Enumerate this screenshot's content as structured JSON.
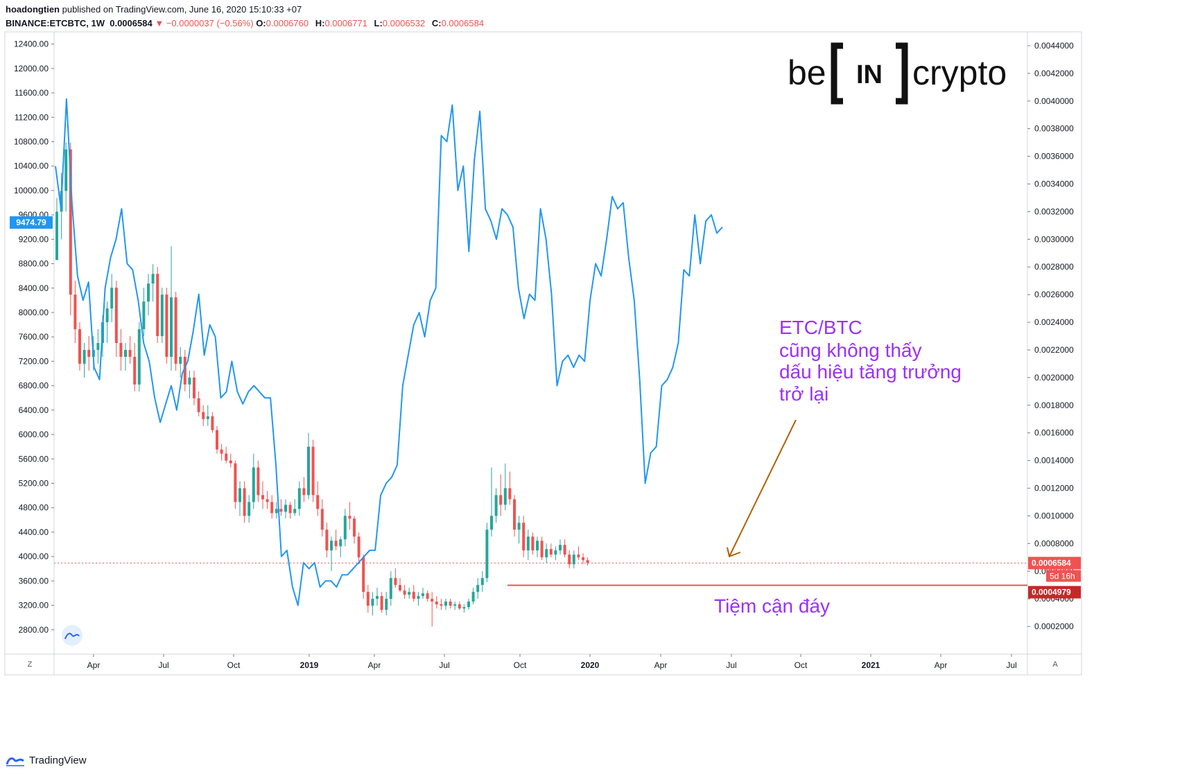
{
  "header": {
    "line1_user": "hoadongtien",
    "line1_rest": " published on TradingView.com, June 16, 2020 15:10:33 +07",
    "symbol": "BINANCE:ETCBTC, 1W",
    "last": "0.0006584",
    "change": "▼ −0.0000037 (−0.56%)",
    "o_label": "O:",
    "o": "0.0006760",
    "h_label": "H:",
    "h": "0.0006771",
    "l_label": "L:",
    "l": "0.0006532",
    "c_label": "C:",
    "c": "0.0006584"
  },
  "footer": {
    "brand": "TradingView"
  },
  "corner": {
    "left": "Z",
    "right": "A"
  },
  "colors": {
    "up": "#26a69a",
    "down": "#ef5350",
    "btc_line": "#2196f3",
    "annotation": "#9b30ff",
    "arrow": "#b35f00"
  },
  "icon": "tradingview-logo-icon",
  "chart_data": {
    "type": "line",
    "xaxis_ticks": [
      "Apr",
      "Jul",
      "Oct",
      "2019",
      "Apr",
      "Jul",
      "Oct",
      "2020",
      "Apr",
      "Jul",
      "Oct",
      "2021",
      "Apr",
      "Jul"
    ],
    "xaxis_bold": [
      false,
      false,
      false,
      true,
      false,
      false,
      false,
      true,
      false,
      false,
      false,
      true,
      false,
      false
    ],
    "left_axis": {
      "ticks": [
        "12400.00",
        "12000.00",
        "11600.00",
        "11200.00",
        "10800.00",
        "10400.00",
        "10000.00",
        "9600.00",
        "9200.00",
        "8800.00",
        "8400.00",
        "8000.00",
        "7600.00",
        "7200.00",
        "6800.00",
        "6400.00",
        "6000.00",
        "5600.00",
        "5200.00",
        "4800.00",
        "4400.00",
        "4000.00",
        "3600.00",
        "3200.00",
        "2800.00"
      ],
      "range": [
        2400,
        12600
      ],
      "current_label": "9474.79"
    },
    "right_axis": {
      "ticks": [
        "0.0044000",
        "0.0042000",
        "0.0040000",
        "0.0038000",
        "0.0036000",
        "0.0034000",
        "0.0032000",
        "0.0030000",
        "0.0028000",
        "0.0026000",
        "0.0024000",
        "0.0022000",
        "0.0020000",
        "0.0018000",
        "0.0016000",
        "0.0014000",
        "0.0012000",
        "0.0010000",
        "0.0008000",
        "0.0006000",
        "0.0004000",
        "0.0002000"
      ],
      "range": [
        0.0,
        0.0045
      ],
      "price_label": "0.0006584",
      "countdown_label": "5d 16h",
      "support_label": "0.0004979"
    },
    "support_level": 0.0004979,
    "last_price": 0.0006584,
    "series": [
      {
        "kind": "candles",
        "axis": "right",
        "candles": [
          [
            0.00285,
            0.0033,
            0.0029,
            0.0032
          ],
          [
            0.0032,
            0.00348,
            0.003,
            0.00335
          ],
          [
            0.00335,
            0.0037,
            0.0032,
            0.00365
          ],
          [
            0.00365,
            0.0037,
            0.00245,
            0.0026
          ],
          [
            0.0026,
            0.0027,
            0.00225,
            0.00235
          ],
          [
            0.00235,
            0.0024,
            0.00205,
            0.0021
          ],
          [
            0.0021,
            0.00225,
            0.002,
            0.0022
          ],
          [
            0.0022,
            0.0023,
            0.00205,
            0.00215
          ],
          [
            0.00215,
            0.0023,
            0.00205,
            0.0022
          ],
          [
            0.0022,
            0.00235,
            0.0021,
            0.00225
          ],
          [
            0.00225,
            0.00245,
            0.00215,
            0.0024
          ],
          [
            0.0024,
            0.00255,
            0.00225,
            0.0025
          ],
          [
            0.0025,
            0.00275,
            0.0024,
            0.00265
          ],
          [
            0.00265,
            0.0027,
            0.00215,
            0.00225
          ],
          [
            0.00225,
            0.00235,
            0.00205,
            0.00215
          ],
          [
            0.00215,
            0.00225,
            0.00205,
            0.0022
          ],
          [
            0.0022,
            0.0023,
            0.0021,
            0.00215
          ],
          [
            0.00215,
            0.00225,
            0.0019,
            0.00195
          ],
          [
            0.00195,
            0.0024,
            0.0019,
            0.00235
          ],
          [
            0.00235,
            0.00265,
            0.0023,
            0.00255
          ],
          [
            0.00255,
            0.00275,
            0.00245,
            0.00268
          ],
          [
            0.00268,
            0.00282,
            0.00255,
            0.00275
          ],
          [
            0.00275,
            0.0028,
            0.00225,
            0.0023
          ],
          [
            0.0023,
            0.00265,
            0.00225,
            0.0026
          ],
          [
            0.0026,
            0.00265,
            0.0021,
            0.00215
          ],
          [
            0.00215,
            0.00295,
            0.00205,
            0.00258
          ],
          [
            0.00258,
            0.00262,
            0.00205,
            0.0021
          ],
          [
            0.0021,
            0.00222,
            0.002,
            0.00215
          ],
          [
            0.00215,
            0.0022,
            0.0019,
            0.00195
          ],
          [
            0.00195,
            0.00205,
            0.00185,
            0.002
          ],
          [
            0.002,
            0.00205,
            0.0018,
            0.00185
          ],
          [
            0.00185,
            0.0019,
            0.00172,
            0.00175
          ],
          [
            0.00175,
            0.0018,
            0.00165,
            0.0017
          ],
          [
            0.0017,
            0.0018,
            0.00165,
            0.00172
          ],
          [
            0.00172,
            0.00175,
            0.0016,
            0.00162
          ],
          [
            0.00162,
            0.00165,
            0.00145,
            0.00148
          ],
          [
            0.00148,
            0.00152,
            0.0014,
            0.00145
          ],
          [
            0.00145,
            0.0015,
            0.00138,
            0.0014
          ],
          [
            0.0014,
            0.00145,
            0.00135,
            0.00138
          ],
          [
            0.00138,
            0.0014,
            0.00105,
            0.0011
          ],
          [
            0.0011,
            0.00125,
            0.001,
            0.0012
          ],
          [
            0.0012,
            0.00125,
            0.00095,
            0.001
          ],
          [
            0.001,
            0.00115,
            0.00095,
            0.0011
          ],
          [
            0.0011,
            0.00145,
            0.00105,
            0.00135
          ],
          [
            0.00135,
            0.0014,
            0.0011,
            0.00115
          ],
          [
            0.00115,
            0.00125,
            0.00105,
            0.00112
          ],
          [
            0.00112,
            0.00118,
            0.00105,
            0.0011
          ],
          [
            0.0011,
            0.00115,
            0.00098,
            0.00102
          ],
          [
            0.00102,
            0.0011,
            0.00098,
            0.00105
          ],
          [
            0.00105,
            0.00112,
            0.001,
            0.00103
          ],
          [
            0.00103,
            0.00112,
            0.00098,
            0.00108
          ],
          [
            0.00108,
            0.0011,
            0.00098,
            0.00102
          ],
          [
            0.00102,
            0.00112,
            0.001,
            0.00105
          ],
          [
            0.00105,
            0.00125,
            0.001,
            0.0012
          ],
          [
            0.0012,
            0.00128,
            0.0011,
            0.00115
          ],
          [
            0.00115,
            0.0016,
            0.00112,
            0.0015
          ],
          [
            0.0015,
            0.00155,
            0.0011,
            0.00115
          ],
          [
            0.00115,
            0.00125,
            0.001,
            0.00105
          ],
          [
            0.00105,
            0.00112,
            0.00085,
            0.0009
          ],
          [
            0.0009,
            0.00095,
            0.0007,
            0.00075
          ],
          [
            0.00075,
            0.00085,
            0.0006,
            0.00082
          ],
          [
            0.00082,
            0.0009,
            0.00075,
            0.00078
          ],
          [
            0.00078,
            0.00085,
            0.0007,
            0.00083
          ],
          [
            0.00083,
            0.00105,
            0.00078,
            0.001
          ],
          [
            0.001,
            0.0011,
            0.0009,
            0.00098
          ],
          [
            0.00098,
            0.001,
            0.0008,
            0.00085
          ],
          [
            0.00085,
            0.00088,
            0.00065,
            0.0007
          ],
          [
            0.0007,
            0.00072,
            0.0004,
            0.00045
          ],
          [
            0.00045,
            0.0005,
            0.0003,
            0.00035
          ],
          [
            0.00035,
            0.00045,
            0.00028,
            0.0004
          ],
          [
            0.0004,
            0.00048,
            0.00035,
            0.00042
          ],
          [
            0.00042,
            0.00045,
            0.0003,
            0.00032
          ],
          [
            0.00032,
            0.00045,
            0.00028,
            0.0004
          ],
          [
            0.0004,
            0.0006,
            0.00035,
            0.00055
          ],
          [
            0.00055,
            0.00062,
            0.00048,
            0.0005
          ],
          [
            0.0005,
            0.00055,
            0.00045,
            0.00046
          ],
          [
            0.00046,
            0.0005,
            0.0004,
            0.00043
          ],
          [
            0.00043,
            0.00048,
            0.0004,
            0.00045
          ],
          [
            0.00045,
            0.0005,
            0.00038,
            0.0004
          ],
          [
            0.0004,
            0.00045,
            0.00035,
            0.00042
          ],
          [
            0.00042,
            0.00048,
            0.0004,
            0.00044
          ],
          [
            0.00044,
            0.00046,
            0.00038,
            0.0004
          ],
          [
            0.0004,
            0.00045,
            0.0002,
            0.00038
          ],
          [
            0.00038,
            0.00042,
            0.00033,
            0.00036
          ],
          [
            0.00036,
            0.0004,
            0.00032,
            0.00035
          ],
          [
            0.00035,
            0.0004,
            0.00032,
            0.00038
          ],
          [
            0.00038,
            0.0004,
            0.00033,
            0.00035
          ],
          [
            0.00035,
            0.00038,
            0.00032,
            0.00036
          ],
          [
            0.00036,
            0.00038,
            0.00032,
            0.00033
          ],
          [
            0.00033,
            0.00036,
            0.0003,
            0.00034
          ],
          [
            0.00034,
            0.0004,
            0.00032,
            0.00038
          ],
          [
            0.00038,
            0.00048,
            0.00036,
            0.00045
          ],
          [
            0.00045,
            0.00055,
            0.0004,
            0.0005
          ],
          [
            0.0005,
            0.0006,
            0.00045,
            0.00055
          ],
          [
            0.00055,
            0.00095,
            0.00052,
            0.0009
          ],
          [
            0.0009,
            0.00135,
            0.00085,
            0.001
          ],
          [
            0.001,
            0.0012,
            0.00095,
            0.00115
          ],
          [
            0.00115,
            0.0013,
            0.001,
            0.00108
          ],
          [
            0.00108,
            0.00138,
            0.00104,
            0.0012
          ],
          [
            0.0012,
            0.00132,
            0.00108,
            0.00112
          ],
          [
            0.00112,
            0.00115,
            0.00085,
            0.0009
          ],
          [
            0.0009,
            0.001,
            0.0008,
            0.00095
          ],
          [
            0.00095,
            0.001,
            0.0007,
            0.00075
          ],
          [
            0.00075,
            0.0009,
            0.00068,
            0.00085
          ],
          [
            0.00085,
            0.00088,
            0.00072,
            0.00075
          ],
          [
            0.00075,
            0.00085,
            0.0007,
            0.00082
          ],
          [
            0.00082,
            0.00085,
            0.00068,
            0.0007
          ],
          [
            0.0007,
            0.0008,
            0.00066,
            0.00076
          ],
          [
            0.00076,
            0.0008,
            0.0007,
            0.00072
          ],
          [
            0.00072,
            0.00078,
            0.00068,
            0.00075
          ],
          [
            0.00075,
            0.00083,
            0.00072,
            0.00079
          ],
          [
            0.00079,
            0.00083,
            0.0007,
            0.00072
          ],
          [
            0.00072,
            0.00075,
            0.00062,
            0.00065
          ],
          [
            0.00065,
            0.00075,
            0.00062,
            0.00072
          ],
          [
            0.00072,
            0.00078,
            0.00068,
            0.0007
          ],
          [
            0.0007,
            0.00073,
            0.00065,
            0.00068
          ],
          [
            0.00068,
            0.0007,
            0.00064,
            0.00066
          ]
        ]
      },
      {
        "kind": "line",
        "axis": "left",
        "values": [
          10400,
          9700,
          11500,
          9800,
          8600,
          8200,
          8500,
          7100,
          6900,
          8400,
          8900,
          9200,
          9700,
          8800,
          8700,
          8200,
          7500,
          7200,
          6600,
          6200,
          6500,
          6800,
          6400,
          7000,
          7200,
          7700,
          8300,
          7300,
          7800,
          7600,
          6600,
          6700,
          7200,
          6700,
          6500,
          6700,
          6800,
          6700,
          6600,
          6600,
          5500,
          4000,
          4100,
          3500,
          3200,
          3900,
          3800,
          3900,
          3500,
          3600,
          3600,
          3500,
          3700,
          3700,
          3800,
          3900,
          4000,
          4100,
          4100,
          5000,
          5200,
          5300,
          5500,
          6800,
          7300,
          7800,
          8000,
          7600,
          8200,
          8400,
          10900,
          10800,
          11400,
          10000,
          10400,
          9000,
          10500,
          11300,
          9700,
          9500,
          9200,
          9700,
          9600,
          9400,
          8400,
          7900,
          8300,
          8200,
          9700,
          9200,
          8300,
          6800,
          7200,
          7300,
          7100,
          7300,
          7200,
          8200,
          8800,
          8600,
          9200,
          9900,
          9700,
          9800,
          8900,
          8200,
          6900,
          5200,
          5700,
          5800,
          6800,
          6900,
          7100,
          7500,
          8700,
          8600,
          9600,
          8800,
          9500,
          9600,
          9300,
          9400
        ]
      }
    ],
    "annotations": {
      "main_text": [
        "ETC/BTC",
        "cũng không thấy",
        "dấu hiệu tăng trưởng",
        "trở lại"
      ],
      "bottom_text": "Tiệm cận đáy",
      "logo_left": "be",
      "logo_mid": "IN",
      "logo_right": "crypto"
    }
  }
}
